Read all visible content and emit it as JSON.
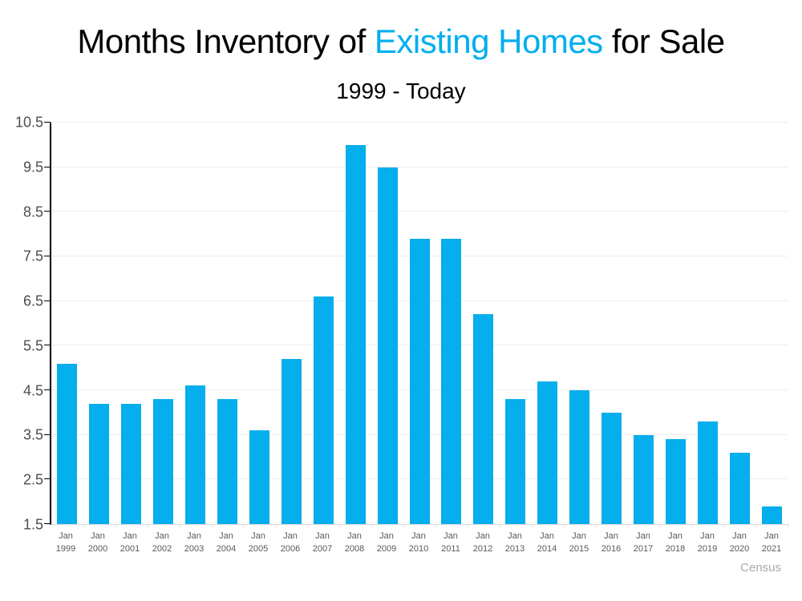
{
  "header": {
    "title_part1": "Months Inventory of ",
    "title_highlight": "Existing Homes",
    "title_part2": " for Sale",
    "subtitle": "1999 - Today"
  },
  "footer": {
    "source": "Census"
  },
  "colors": {
    "accent_blue": "#00AEEF",
    "bar": "#05AEEC",
    "gridline": "#ECECEC",
    "axis_line": "#000000",
    "x_axis_line": "#D9D9D9",
    "y_label_text": "#4D4D4D",
    "x_label_text": "#595959",
    "source_text": "#A9A9A9"
  },
  "chart_data": {
    "type": "bar",
    "title": "Months Inventory of Existing Homes for Sale",
    "subtitle": "1999 - Today",
    "categories": [
      "Jan 1999",
      "Jan 2000",
      "Jan 2001",
      "Jan 2002",
      "Jan 2003",
      "Jan 2004",
      "Jan 2005",
      "Jan 2006",
      "Jan 2007",
      "Jan 2008",
      "Jan 2009",
      "Jan 2010",
      "Jan 2011",
      "Jan 2012",
      "Jan 2013",
      "Jan 2014",
      "Jan 2015",
      "Jan 2016",
      "Jan 2017",
      "Jan 2018",
      "Jan 2019",
      "Jan 2020",
      "Jan 2021"
    ],
    "values": [
      5.1,
      4.2,
      4.2,
      4.3,
      4.6,
      4.3,
      3.6,
      5.2,
      6.6,
      10.0,
      9.5,
      7.9,
      7.9,
      6.2,
      4.3,
      4.7,
      4.5,
      4.0,
      3.5,
      3.4,
      3.8,
      3.1,
      1.9
    ],
    "xlabel": "",
    "ylabel": "",
    "ylim": [
      1.5,
      10.5
    ],
    "ytick_step": 1.0,
    "yticks": [
      1.5,
      2.5,
      3.5,
      4.5,
      5.5,
      6.5,
      7.5,
      8.5,
      9.5,
      10.5
    ],
    "grid": true,
    "legend": "none",
    "bar_color": "#05AEEC"
  }
}
